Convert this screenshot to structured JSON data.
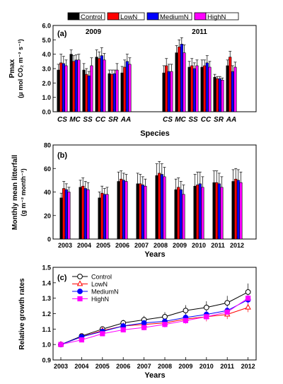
{
  "legend": {
    "items": [
      {
        "label": "Control",
        "color": "#000000"
      },
      {
        "label": "LowN",
        "color": "#ff0000"
      },
      {
        "label": "MediumN",
        "color": "#0000ff"
      },
      {
        "label": "HighN",
        "color": "#ff00ff"
      }
    ]
  },
  "chart_data": [
    {
      "type": "bar",
      "panel_label": "(a)",
      "xlabel": "Species",
      "ylabel_line1": "Pmax",
      "ylabel_line2": "(μ mol CO₂ m⁻² s⁻¹)",
      "ylim": [
        0,
        6
      ],
      "yticks": [
        "0.0",
        "1.0",
        "2.0",
        "3.0",
        "4.0",
        "5.0",
        "6.0"
      ],
      "groups": [
        {
          "title": "2009",
          "categories": [
            "CS",
            "MC",
            "SS",
            "CC",
            "SR",
            "AA"
          ],
          "series": [
            {
              "name": "Control",
              "values": [
                2.9,
                4.0,
                2.9,
                3.8,
                2.65,
                2.7
              ],
              "errors": [
                0.4,
                0.3,
                0.45,
                0.5,
                0.25,
                0.45
              ]
            },
            {
              "name": "LowN",
              "values": [
                3.4,
                3.5,
                2.6,
                3.7,
                2.6,
                3.1
              ],
              "errors": [
                0.6,
                0.4,
                0.4,
                0.45,
                0.3,
                0.5
              ]
            },
            {
              "name": "MediumN",
              "values": [
                3.35,
                3.6,
                2.5,
                3.9,
                2.65,
                3.5
              ],
              "errors": [
                0.5,
                0.35,
                0.3,
                0.55,
                0.25,
                0.5
              ]
            },
            {
              "name": "HighN",
              "values": [
                3.2,
                3.6,
                3.2,
                3.6,
                2.9,
                3.3
              ],
              "errors": [
                0.4,
                0.4,
                0.55,
                0.45,
                0.45,
                0.45
              ]
            }
          ]
        },
        {
          "title": "2011",
          "categories": [
            "CS",
            "MC",
            "SS",
            "CC",
            "SR",
            "AA"
          ],
          "series": [
            {
              "name": "Control",
              "values": [
                2.7,
                4.1,
                3.1,
                3.1,
                2.4,
                3.2
              ],
              "errors": [
                0.5,
                0.5,
                0.4,
                0.5,
                0.2,
                0.4
              ]
            },
            {
              "name": "LowN",
              "values": [
                3.2,
                4.5,
                3.2,
                3.2,
                2.3,
                3.8
              ],
              "errors": [
                0.5,
                0.5,
                0.5,
                0.4,
                0.15,
                0.4
              ]
            },
            {
              "name": "MediumN",
              "values": [
                2.8,
                4.7,
                3.0,
                3.4,
                2.3,
                2.8
              ],
              "errors": [
                0.5,
                0.45,
                0.4,
                0.5,
                0.15,
                0.4
              ]
            },
            {
              "name": "HighN",
              "values": [
                2.8,
                4.1,
                3.2,
                3.1,
                2.2,
                3.1
              ],
              "errors": [
                0.5,
                0.55,
                0.4,
                0.4,
                0.15,
                0.35
              ]
            }
          ]
        }
      ]
    },
    {
      "type": "bar",
      "panel_label": "(b)",
      "xlabel": "Years",
      "ylabel_line1": "Monthly mean litterfall",
      "ylabel_line2": "(g m⁻² month⁻¹)",
      "ylim": [
        0,
        80
      ],
      "yticks": [
        "0",
        "20",
        "40",
        "60",
        "80"
      ],
      "categories": [
        "2003",
        "2004",
        "2005",
        "2006",
        "2007",
        "2008",
        "2009",
        "2010",
        "2011",
        "2012"
      ],
      "series": [
        {
          "name": "Control",
          "values": [
            35,
            44,
            35,
            49,
            47,
            54,
            42,
            45,
            48,
            49
          ],
          "errors": [
            4,
            6,
            5,
            8,
            9,
            10,
            9,
            10,
            10,
            10
          ]
        },
        {
          "name": "LowN",
          "values": [
            43,
            45,
            39,
            51,
            47,
            56,
            44,
            46,
            48,
            51
          ],
          "errors": [
            6,
            7,
            6,
            7,
            8,
            10,
            8,
            11,
            10,
            9
          ]
        },
        {
          "name": "MediumN",
          "values": [
            42,
            43,
            38,
            50,
            46,
            55,
            42,
            47,
            47,
            50
          ],
          "errors": [
            5,
            6,
            5,
            6,
            7,
            9,
            7,
            10,
            9,
            9
          ]
        },
        {
          "name": "HighN",
          "values": [
            40,
            42,
            38,
            49,
            45,
            53,
            38,
            44,
            44,
            48
          ],
          "errors": [
            4,
            6,
            6,
            6,
            6,
            8,
            8,
            9,
            9,
            9
          ]
        }
      ]
    },
    {
      "type": "line",
      "panel_label": "(c)",
      "xlabel": "Years",
      "ylabel": "Relative growth rates",
      "ylim": [
        0.9,
        1.5
      ],
      "yticks": [
        "0.9",
        "1.0",
        "1.1",
        "1.2",
        "1.3",
        "1.4",
        "1.5"
      ],
      "categories": [
        "2003",
        "2004",
        "2005",
        "2006",
        "2007",
        "2008",
        "2009",
        "2010",
        "2011",
        "2012"
      ],
      "legend": [
        "Control",
        "LowN",
        "MediumN",
        "HighN"
      ],
      "series": [
        {
          "name": "Control",
          "marker": "circle-open",
          "values": [
            1.0,
            1.055,
            1.1,
            1.14,
            1.16,
            1.18,
            1.22,
            1.24,
            1.27,
            1.34
          ],
          "errors": [
            0.008,
            0.01,
            0.015,
            0.02,
            0.025,
            0.03,
            0.035,
            0.04,
            0.045,
            0.055
          ]
        },
        {
          "name": "LowN",
          "marker": "triangle-open",
          "values": [
            1.0,
            1.05,
            1.09,
            1.12,
            1.13,
            1.14,
            1.165,
            1.18,
            1.195,
            1.24
          ],
          "errors": [
            0.008,
            0.01,
            0.015,
            0.018,
            0.02,
            0.022,
            0.025,
            0.03,
            0.03,
            0.03
          ]
        },
        {
          "name": "MediumN",
          "marker": "circle-filled",
          "values": [
            1.0,
            1.05,
            1.085,
            1.12,
            1.14,
            1.15,
            1.175,
            1.195,
            1.22,
            1.29
          ],
          "errors": [
            0.008,
            0.01,
            0.012,
            0.015,
            0.018,
            0.02,
            0.022,
            0.025,
            0.03,
            0.04
          ]
        },
        {
          "name": "HighN",
          "marker": "square-filled",
          "values": [
            1.0,
            1.03,
            1.07,
            1.095,
            1.11,
            1.13,
            1.155,
            1.18,
            1.21,
            1.3
          ],
          "errors": [
            0.008,
            0.01,
            0.012,
            0.015,
            0.018,
            0.02,
            0.022,
            0.025,
            0.03,
            0.04
          ]
        }
      ]
    }
  ]
}
